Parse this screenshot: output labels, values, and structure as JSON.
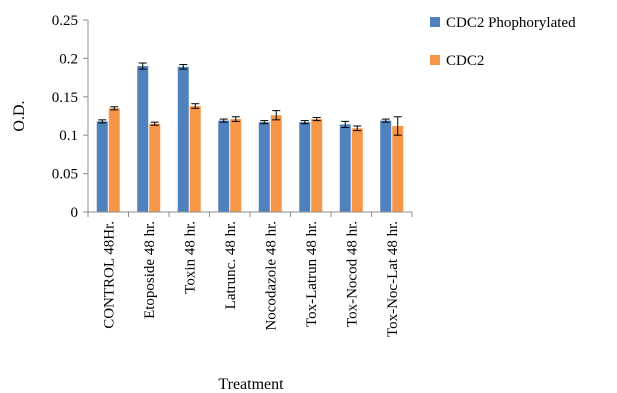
{
  "chart_data": {
    "type": "bar",
    "title": "",
    "xlabel": "Treatment",
    "ylabel": "O.D.",
    "ylim": [
      0,
      0.25
    ],
    "yticks": [
      "0",
      "0.05",
      "0.1",
      "0.15",
      "0.2",
      "0.25"
    ],
    "ytick_values": [
      0,
      0.05,
      0.1,
      0.15,
      0.2,
      0.25
    ],
    "grid": false,
    "legend_position": "right",
    "categories": [
      "CONTROL 48Hr.",
      "Etoposide 48 hr.",
      "Toxin 48 hr.",
      "Latrunc. 48 hr.",
      "Nocodazole 48 hr.",
      "Tox-Latrun 48 hr.",
      "Tox-Nocod 48 hr.",
      "Tox-Noc-Lat 48 hr."
    ],
    "series": [
      {
        "name": "CDC2 Phophorylated",
        "color": "#4f81bd",
        "values": [
          0.118,
          0.19,
          0.189,
          0.119,
          0.117,
          0.117,
          0.114,
          0.119
        ],
        "errors": [
          0.002,
          0.004,
          0.003,
          0.002,
          0.002,
          0.002,
          0.004,
          0.002
        ]
      },
      {
        "name": "CDC2",
        "color": "#f79646",
        "values": [
          0.135,
          0.115,
          0.138,
          0.121,
          0.126,
          0.121,
          0.109,
          0.112
        ],
        "errors": [
          0.002,
          0.002,
          0.003,
          0.003,
          0.006,
          0.002,
          0.003,
          0.012
        ]
      }
    ]
  }
}
